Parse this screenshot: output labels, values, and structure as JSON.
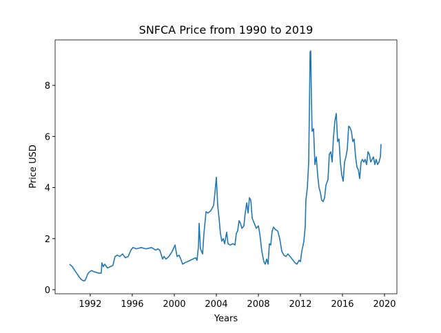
{
  "chart_data": {
    "type": "line",
    "title": "SNFCA Price from 1990 to 2019",
    "x_label": "Years",
    "y_label": "Price USD",
    "color": "#1f77b4",
    "x": [
      1990.03,
      1990.3,
      1990.62,
      1990.95,
      1991.15,
      1991.34,
      1991.48,
      1991.61,
      1991.74,
      1991.93,
      1992.13,
      1992.39,
      1992.79,
      1993.05,
      1993.11,
      1993.25,
      1993.38,
      1993.64,
      1993.9,
      1994.16,
      1994.36,
      1994.56,
      1994.82,
      1995.08,
      1995.34,
      1995.61,
      1995.87,
      1996.07,
      1996.39,
      1996.85,
      1997.31,
      1997.84,
      1998.23,
      1998.43,
      1998.62,
      1998.89,
      1999.02,
      1999.21,
      1999.48,
      1999.8,
      2000.07,
      2000.26,
      2000.46,
      2000.66,
      2000.79,
      2000.98,
      2001.25,
      2001.51,
      2001.77,
      2002.03,
      2002.16,
      2002.3,
      2002.36,
      2002.49,
      2002.69,
      2002.82,
      2003.02,
      2003.21,
      2003.48,
      2003.74,
      2003.87,
      2004.0,
      2004.13,
      2004.26,
      2004.39,
      2004.52,
      2004.66,
      2004.79,
      2004.98,
      2005.11,
      2005.31,
      2005.57,
      2005.77,
      2005.9,
      2006.03,
      2006.16,
      2006.3,
      2006.43,
      2006.62,
      2006.75,
      2006.89,
      2007.02,
      2007.15,
      2007.28,
      2007.41,
      2007.61,
      2007.8,
      2008.0,
      2008.13,
      2008.33,
      2008.52,
      2008.66,
      2008.79,
      2008.92,
      2009.05,
      2009.18,
      2009.31,
      2009.44,
      2009.64,
      2009.84,
      2010.03,
      2010.23,
      2010.43,
      2010.62,
      2010.82,
      2011.02,
      2011.21,
      2011.48,
      2011.67,
      2011.87,
      2012.0,
      2012.13,
      2012.33,
      2012.46,
      2012.52,
      2012.66,
      2012.79,
      2012.85,
      2012.92,
      2012.98,
      2013.05,
      2013.11,
      2013.25,
      2013.38,
      2013.51,
      2013.64,
      2013.77,
      2013.9,
      2014.03,
      2014.16,
      2014.3,
      2014.43,
      2014.62,
      2014.75,
      2014.89,
      2015.02,
      2015.15,
      2015.28,
      2015.41,
      2015.54,
      2015.67,
      2015.8,
      2015.93,
      2016.07,
      2016.2,
      2016.33,
      2016.46,
      2016.59,
      2016.72,
      2016.85,
      2016.98,
      2017.11,
      2017.25,
      2017.38,
      2017.51,
      2017.64,
      2017.77,
      2017.9,
      2018.03,
      2018.16,
      2018.3,
      2018.43,
      2018.56,
      2018.69,
      2018.82,
      2018.95,
      2019.08,
      2019.21,
      2019.34,
      2019.48,
      2019.61,
      2019.67
    ],
    "values": [
      1.0,
      0.9,
      0.7,
      0.5,
      0.4,
      0.35,
      0.35,
      0.45,
      0.6,
      0.7,
      0.75,
      0.7,
      0.65,
      0.65,
      1.05,
      0.9,
      1.0,
      0.85,
      0.9,
      0.95,
      1.3,
      1.35,
      1.3,
      1.4,
      1.25,
      1.3,
      1.55,
      1.65,
      1.6,
      1.65,
      1.6,
      1.65,
      1.55,
      1.6,
      1.55,
      1.2,
      1.3,
      1.2,
      1.3,
      1.5,
      1.75,
      1.3,
      1.35,
      1.15,
      1.0,
      1.05,
      1.1,
      1.15,
      1.2,
      1.25,
      1.15,
      1.7,
      2.6,
      1.6,
      1.4,
      2.2,
      3.05,
      3.0,
      3.1,
      3.3,
      3.8,
      4.4,
      3.3,
      2.8,
      2.2,
      1.9,
      2.0,
      1.8,
      2.25,
      1.8,
      1.75,
      1.8,
      1.75,
      2.2,
      2.3,
      2.7,
      2.6,
      2.4,
      2.5,
      3.0,
      3.4,
      3.0,
      3.6,
      3.5,
      2.8,
      2.6,
      2.4,
      2.5,
      2.2,
      1.5,
      1.1,
      1.0,
      1.2,
      1.0,
      1.8,
      1.75,
      2.3,
      2.45,
      2.35,
      2.3,
      2.0,
      1.5,
      1.35,
      1.3,
      1.4,
      1.3,
      1.2,
      1.05,
      1.0,
      1.15,
      1.1,
      1.5,
      1.9,
      2.5,
      3.5,
      4.0,
      5.0,
      7.0,
      9.3,
      9.35,
      7.5,
      6.2,
      6.3,
      4.9,
      5.2,
      4.5,
      4.0,
      3.8,
      3.5,
      3.45,
      3.6,
      4.1,
      4.3,
      5.3,
      5.4,
      5.0,
      6.0,
      6.6,
      6.9,
      5.8,
      5.9,
      5.0,
      4.5,
      4.25,
      5.0,
      5.2,
      5.5,
      6.4,
      6.35,
      6.2,
      5.8,
      5.9,
      5.2,
      4.8,
      4.7,
      4.35,
      5.0,
      5.1,
      5.0,
      5.1,
      4.9,
      5.4,
      5.3,
      5.0,
      5.1,
      5.2,
      4.9,
      5.1,
      4.9,
      5.0,
      5.2,
      5.7
    ],
    "xlim": [
      1988.66,
      2021.18
    ],
    "xticks": [
      1992,
      1996,
      2000,
      2004,
      2008,
      2012,
      2016,
      2020
    ],
    "ylim": [
      -0.16,
      9.78
    ],
    "yticks": [
      0,
      2,
      4,
      6,
      8
    ]
  }
}
